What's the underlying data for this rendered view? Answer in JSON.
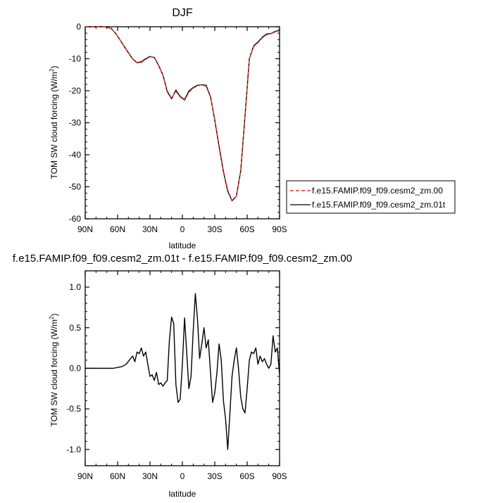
{
  "season_title": "DJF",
  "diff_title": "f.e15.FAMIP.f09_f09.cesm2_zm.01t - f.e15.FAMIP.f09_f09.cesm2_zm.00",
  "chart_data": [
    {
      "type": "line",
      "title": "DJF",
      "xlabel": "latitude",
      "ylabel_main": "TOM SW cloud forcing (W/m",
      "ylabel_sup": "2",
      "ylabel_close": ")",
      "xlim": [
        90,
        -90
      ],
      "ylim": [
        -60,
        0
      ],
      "x_ticks": [
        90,
        60,
        30,
        0,
        -30,
        -60,
        -90
      ],
      "x_tick_labels": [
        "90N",
        "60N",
        "30N",
        "0",
        "30S",
        "60S",
        "90S"
      ],
      "y_ticks": [
        0,
        -10,
        -20,
        -30,
        -40,
        -50,
        -60
      ],
      "y_tick_labels": [
        "0",
        "-10",
        "-20",
        "-30",
        "-40",
        "-50",
        "-60"
      ],
      "legend": "outside-right",
      "series": [
        {
          "name": "f.e15.FAMIP.f09_f09.cesm2_zm.00",
          "color": "#e8332a",
          "dash": "dashed",
          "x": [
            90,
            80,
            72,
            66,
            62,
            58,
            54,
            50,
            46,
            42,
            38,
            34,
            30,
            26,
            22,
            18,
            14,
            10,
            6,
            2,
            -2,
            -6,
            -10,
            -14,
            -18,
            -22,
            -26,
            -30,
            -34,
            -38,
            -42,
            -46,
            -50,
            -54,
            -58,
            -62,
            -66,
            -70,
            -74,
            -78,
            -82,
            -86,
            -90
          ],
          "values": [
            0,
            0,
            0,
            -0.5,
            -2,
            -4,
            -6,
            -8,
            -10,
            -11.3,
            -11.2,
            -10.2,
            -9.4,
            -9.5,
            -12,
            -15,
            -20,
            -22.3,
            -20.2,
            -22,
            -23,
            -20.5,
            -19.2,
            -18.5,
            -18.1,
            -18.6,
            -22,
            -29,
            -37,
            -45,
            -51,
            -54.2,
            -53,
            -45,
            -28,
            -10,
            -6.2,
            -5,
            -3.5,
            -2.5,
            -2.2,
            -1.6,
            -1.2
          ]
        },
        {
          "name": "f.e15.FAMIP.f09_f09.cesm2_zm.01t",
          "color": "#000000",
          "dash": "solid",
          "x": [
            90,
            80,
            72,
            66,
            62,
            58,
            54,
            50,
            46,
            42,
            38,
            34,
            30,
            26,
            22,
            18,
            14,
            10,
            6,
            2,
            -2,
            -6,
            -10,
            -14,
            -18,
            -22,
            -26,
            -30,
            -34,
            -38,
            -42,
            -46,
            -50,
            -54,
            -58,
            -62,
            -66,
            -70,
            -74,
            -78,
            -82,
            -86,
            -90
          ],
          "values": [
            0,
            0,
            0,
            -0.5,
            -2,
            -4,
            -6.1,
            -8.1,
            -10.1,
            -11.2,
            -11.0,
            -10.0,
            -9.3,
            -9.6,
            -12.1,
            -15.1,
            -20.3,
            -22.5,
            -19.8,
            -21.8,
            -22.8,
            -20.1,
            -19.0,
            -18.3,
            -18.1,
            -18.3,
            -21.8,
            -29.2,
            -37.4,
            -45.3,
            -51.4,
            -54.4,
            -52.9,
            -45.1,
            -28,
            -10,
            -6.0,
            -4.8,
            -3.3,
            -2.3,
            -2.1,
            -1.5,
            -1.0
          ]
        }
      ]
    },
    {
      "type": "line",
      "title": "f.e15.FAMIP.f09_f09.cesm2_zm.01t - f.e15.FAMIP.f09_f09.cesm2_zm.00",
      "xlabel": "latitude",
      "ylabel_main": "TOM SW cloud forcing (W/m",
      "ylabel_sup": "2",
      "ylabel_close": ")",
      "xlim": [
        90,
        -90
      ],
      "ylim": [
        -1.2,
        1.2
      ],
      "x_ticks": [
        90,
        60,
        30,
        0,
        -30,
        -60,
        -90
      ],
      "x_tick_labels": [
        "90N",
        "60N",
        "30N",
        "0",
        "30S",
        "60S",
        "90S"
      ],
      "y_ticks": [
        1.0,
        0.5,
        0.0,
        -0.5,
        -1.0
      ],
      "y_tick_labels": [
        "1.0",
        "0.5",
        "0.0",
        "-0.5",
        "-1.0"
      ],
      "series": [
        {
          "color": "#000000",
          "dash": "solid",
          "x": [
            90,
            80,
            70,
            64,
            60,
            56,
            52,
            48,
            46,
            44,
            42,
            40,
            38,
            36,
            34,
            32,
            30,
            28,
            26,
            24,
            22,
            20,
            18,
            16,
            14,
            12,
            10,
            8,
            6,
            4,
            2,
            0,
            -2,
            -4,
            -6,
            -8,
            -10,
            -12,
            -14,
            -16,
            -18,
            -20,
            -22,
            -24,
            -26,
            -28,
            -30,
            -32,
            -34,
            -36,
            -38,
            -40,
            -42,
            -44,
            -46,
            -48,
            -50,
            -52,
            -54,
            -56,
            -58,
            -60,
            -62,
            -64,
            -66,
            -68,
            -70,
            -72,
            -74,
            -76,
            -78,
            -80,
            -82,
            -84,
            -86,
            -88,
            -90
          ],
          "values": [
            0,
            0,
            0,
            0,
            0.01,
            0.02,
            0.05,
            0.12,
            0.15,
            0.08,
            0.2,
            0.18,
            0.25,
            0.15,
            0.2,
            0.05,
            -0.1,
            -0.08,
            -0.15,
            -0.05,
            -0.2,
            -0.18,
            -0.22,
            -0.18,
            -0.15,
            0.35,
            0.63,
            0.55,
            -0.2,
            -0.42,
            -0.38,
            0.05,
            0.62,
            0.2,
            -0.25,
            -0.1,
            0.45,
            0.92,
            0.6,
            0.12,
            0.3,
            0.5,
            0.25,
            0.35,
            -0.05,
            -0.42,
            -0.3,
            -0.05,
            0.3,
            0.1,
            -0.4,
            -0.62,
            -1.0,
            -0.55,
            -0.1,
            0.1,
            0.25,
            0.0,
            -0.35,
            -0.5,
            -0.55,
            -0.25,
            0.1,
            0.2,
            0.18,
            0.25,
            0.05,
            0.15,
            0.08,
            0.12,
            0.05,
            0.0,
            0.05,
            0.4,
            0.2,
            0.25,
            -0.08
          ]
        }
      ]
    }
  ]
}
